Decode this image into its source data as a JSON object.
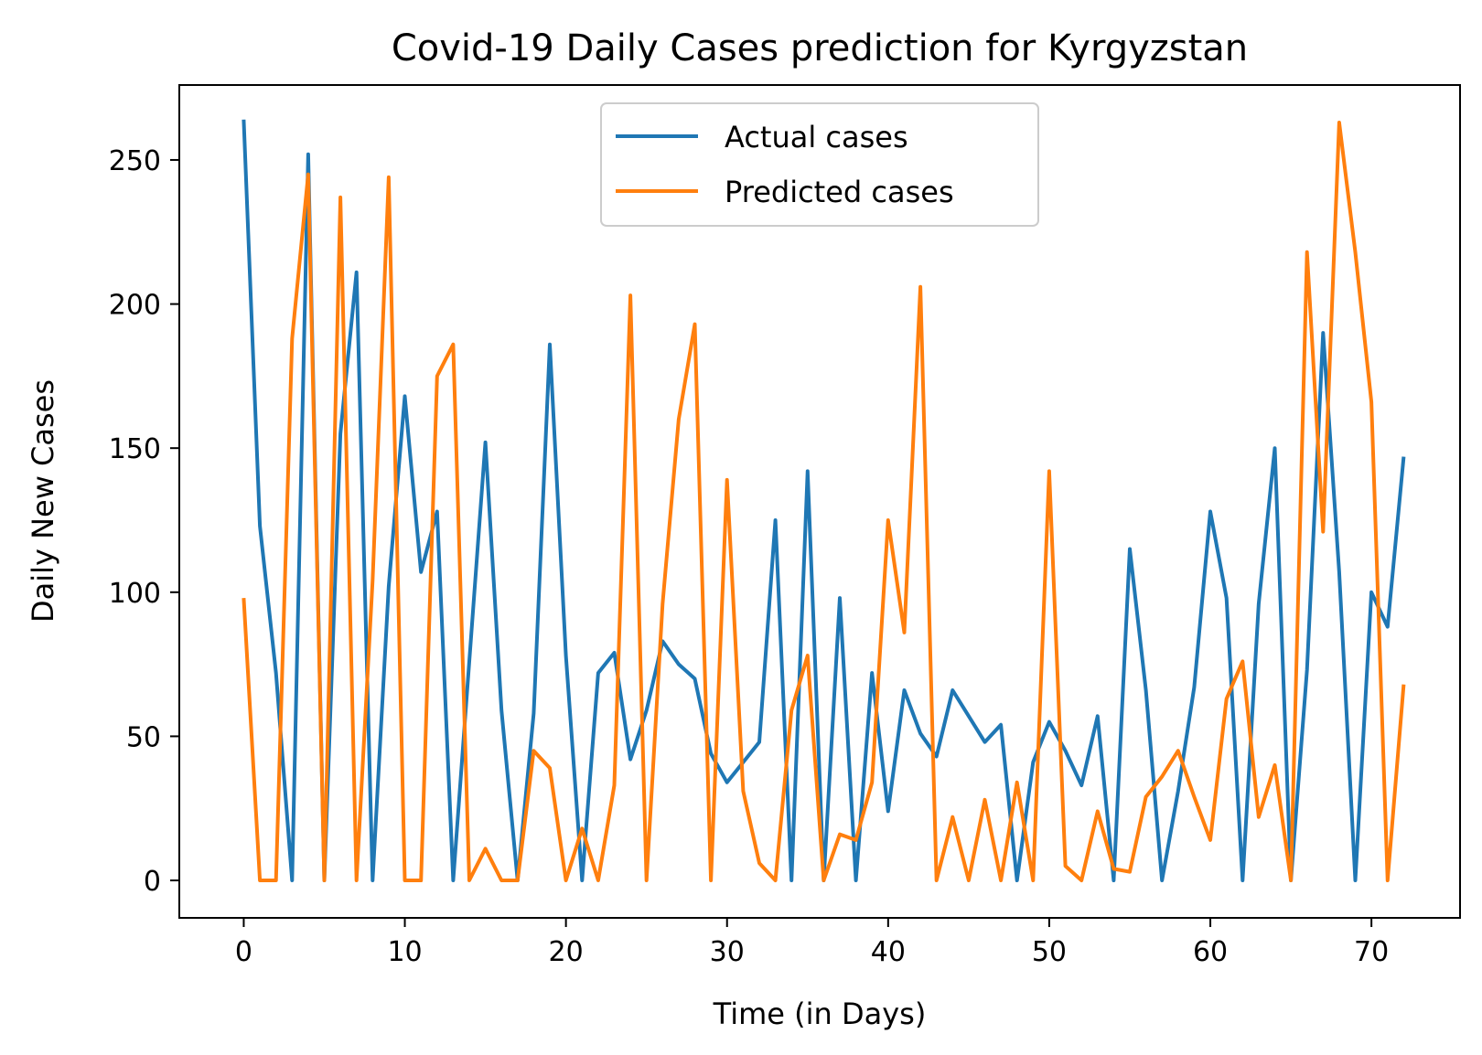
{
  "chart_data": {
    "type": "line",
    "title": "Covid-19 Daily Cases prediction for Kyrgyzstan",
    "xlabel": "Time (in Days)",
    "ylabel": "Daily New Cases",
    "xlim": [
      -4,
      75.5
    ],
    "ylim": [
      -13,
      276
    ],
    "xticks": [
      0,
      10,
      20,
      30,
      40,
      50,
      60,
      70
    ],
    "yticks": [
      0,
      50,
      100,
      150,
      200,
      250
    ],
    "grid": false,
    "legend_position": "upper-center",
    "series": [
      {
        "name": "Actual cases",
        "color": "#1f77b4",
        "values": [
          264,
          123,
          72,
          0,
          252,
          0,
          155,
          211,
          0,
          102,
          168,
          107,
          128,
          0,
          76,
          152,
          59,
          0,
          58,
          186,
          78,
          0,
          72,
          79,
          42,
          59,
          83,
          75,
          70,
          44,
          34,
          41,
          48,
          125,
          0,
          142,
          0,
          98,
          0,
          72,
          24,
          66,
          51,
          43,
          66,
          57,
          48,
          54,
          0,
          41,
          55,
          45,
          33,
          57,
          0,
          115,
          66,
          0,
          31,
          67,
          128,
          98,
          0,
          96,
          150,
          0,
          73,
          190,
          107,
          0,
          100,
          88,
          147
        ]
      },
      {
        "name": "Predicted cases",
        "color": "#ff7f0e",
        "values": [
          98,
          0,
          0,
          188,
          245,
          0,
          237,
          0,
          104,
          244,
          0,
          0,
          175,
          186,
          0,
          11,
          0,
          0,
          45,
          39,
          0,
          18,
          0,
          33,
          203,
          0,
          96,
          160,
          193,
          0,
          139,
          31,
          6,
          0,
          59,
          78,
          0,
          16,
          14,
          34,
          125,
          86,
          206,
          0,
          22,
          0,
          28,
          0,
          34,
          0,
          142,
          5,
          0,
          24,
          4,
          3,
          29,
          36,
          45,
          29,
          14,
          63,
          76,
          22,
          40,
          0,
          218,
          121,
          263,
          218,
          166,
          0,
          68
        ]
      }
    ]
  }
}
